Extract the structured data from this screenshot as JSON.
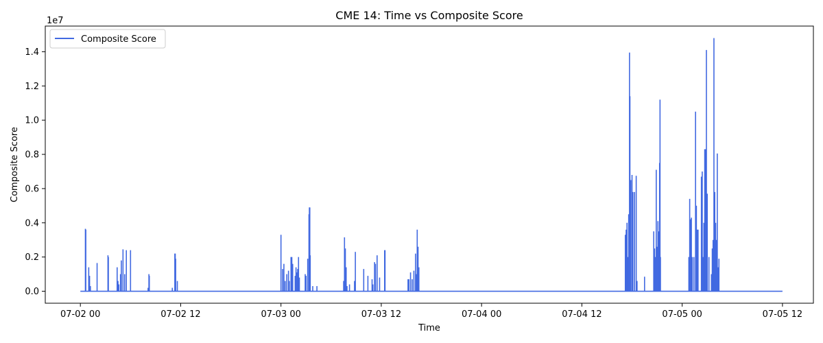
{
  "chart_data": {
    "type": "line",
    "title": "CME 14: Time vs Composite Score",
    "xlabel": "Time",
    "ylabel": "Composite Score",
    "y_offset_text": "1e7",
    "y_multiplier": 10000000,
    "grid": false,
    "legend_position": "top-left",
    "x_range_hours": [
      -4.2,
      87.7
    ],
    "ylim": [
      -0.07,
      1.55
    ],
    "x_ticks": [
      {
        "hours": 0,
        "label": "07-02 00"
      },
      {
        "hours": 12,
        "label": "07-02 12"
      },
      {
        "hours": 24,
        "label": "07-03 00"
      },
      {
        "hours": 36,
        "label": "07-03 12"
      },
      {
        "hours": 48,
        "label": "07-04 00"
      },
      {
        "hours": 60,
        "label": "07-04 12"
      },
      {
        "hours": 72,
        "label": "07-05 00"
      },
      {
        "hours": 84,
        "label": "07-05 12"
      }
    ],
    "y_ticks": [
      {
        "value": 0.0,
        "label": "0.0"
      },
      {
        "value": 0.2,
        "label": "0.2"
      },
      {
        "value": 0.4,
        "label": "0.4"
      },
      {
        "value": 0.6,
        "label": "0.6"
      },
      {
        "value": 0.8,
        "label": "0.8"
      },
      {
        "value": 1.0,
        "label": "1.0"
      },
      {
        "value": 1.2,
        "label": "1.2"
      },
      {
        "value": 1.4,
        "label": "1.4"
      }
    ],
    "series": [
      {
        "name": "Composite Score",
        "color": "#4169e1",
        "start_hours": 0,
        "end_hours": 84,
        "spikes": [
          [
            0.6,
            0.365
          ],
          [
            0.65,
            0.36
          ],
          [
            1.0,
            0.14
          ],
          [
            1.1,
            0.09
          ],
          [
            1.2,
            0.03
          ],
          [
            2.0,
            0.165
          ],
          [
            3.3,
            0.21
          ],
          [
            3.35,
            0.2
          ],
          [
            4.4,
            0.14
          ],
          [
            4.5,
            0.06
          ],
          [
            4.6,
            0.04
          ],
          [
            4.8,
            0.1
          ],
          [
            4.9,
            0.18
          ],
          [
            5.1,
            0.245
          ],
          [
            5.3,
            0.1
          ],
          [
            5.5,
            0.24
          ],
          [
            6.0,
            0.24
          ],
          [
            8.1,
            0.02
          ],
          [
            8.2,
            0.1
          ],
          [
            8.25,
            0.09
          ],
          [
            11.0,
            0.02
          ],
          [
            11.3,
            0.22
          ],
          [
            11.35,
            0.22
          ],
          [
            11.4,
            0.19
          ],
          [
            11.6,
            0.06
          ],
          [
            24.0,
            0.33
          ],
          [
            24.2,
            0.13
          ],
          [
            24.35,
            0.16
          ],
          [
            24.5,
            0.06
          ],
          [
            24.7,
            0.1
          ],
          [
            24.9,
            0.12
          ],
          [
            25.0,
            0.06
          ],
          [
            25.2,
            0.2
          ],
          [
            25.3,
            0.2
          ],
          [
            25.4,
            0.16
          ],
          [
            25.7,
            0.09
          ],
          [
            25.8,
            0.14
          ],
          [
            25.9,
            0.11
          ],
          [
            26.0,
            0.13
          ],
          [
            26.1,
            0.2
          ],
          [
            26.2,
            0.08
          ],
          [
            26.9,
            0.1
          ],
          [
            27.0,
            0.09
          ],
          [
            27.2,
            0.19
          ],
          [
            27.35,
            0.45
          ],
          [
            27.4,
            0.49
          ],
          [
            27.45,
            0.49
          ],
          [
            27.5,
            0.21
          ],
          [
            27.8,
            0.03
          ],
          [
            28.3,
            0.03
          ],
          [
            31.5,
            0.06
          ],
          [
            31.6,
            0.315
          ],
          [
            31.7,
            0.25
          ],
          [
            31.8,
            0.14
          ],
          [
            31.9,
            0.03
          ],
          [
            32.2,
            0.04
          ],
          [
            32.8,
            0.06
          ],
          [
            32.9,
            0.23
          ],
          [
            33.9,
            0.13
          ],
          [
            34.4,
            0.09
          ],
          [
            34.9,
            0.07
          ],
          [
            35.0,
            0.04
          ],
          [
            35.2,
            0.17
          ],
          [
            35.3,
            0.16
          ],
          [
            35.5,
            0.21
          ],
          [
            35.8,
            0.08
          ],
          [
            36.4,
            0.24
          ],
          [
            36.45,
            0.24
          ],
          [
            39.2,
            0.07
          ],
          [
            39.3,
            0.07
          ],
          [
            39.5,
            0.11
          ],
          [
            39.7,
            0.07
          ],
          [
            39.9,
            0.12
          ],
          [
            40.1,
            0.22
          ],
          [
            40.2,
            0.1
          ],
          [
            40.3,
            0.36
          ],
          [
            40.4,
            0.26
          ],
          [
            40.5,
            0.14
          ],
          [
            65.2,
            0.33
          ],
          [
            65.3,
            0.36
          ],
          [
            65.4,
            0.4
          ],
          [
            65.5,
            0.2
          ],
          [
            65.6,
            0.45
          ],
          [
            65.7,
            1.395
          ],
          [
            65.75,
            1.14
          ],
          [
            65.85,
            0.65
          ],
          [
            66.0,
            0.68
          ],
          [
            66.1,
            0.58
          ],
          [
            66.3,
            0.58
          ],
          [
            66.5,
            0.675
          ],
          [
            66.6,
            0.06
          ],
          [
            67.5,
            0.085
          ],
          [
            68.6,
            0.35
          ],
          [
            68.7,
            0.25
          ],
          [
            68.8,
            0.2
          ],
          [
            68.9,
            0.71
          ],
          [
            69.0,
            0.26
          ],
          [
            69.1,
            0.41
          ],
          [
            69.2,
            0.35
          ],
          [
            69.3,
            0.75
          ],
          [
            69.35,
            1.12
          ],
          [
            69.4,
            0.2
          ],
          [
            72.8,
            0.2
          ],
          [
            72.9,
            0.54
          ],
          [
            73.0,
            0.42
          ],
          [
            73.1,
            0.43
          ],
          [
            73.2,
            0.2
          ],
          [
            73.4,
            0.2
          ],
          [
            73.6,
            1.05
          ],
          [
            73.7,
            0.5
          ],
          [
            73.8,
            0.36
          ],
          [
            73.9,
            0.36
          ],
          [
            74.3,
            0.67
          ],
          [
            74.4,
            0.7
          ],
          [
            74.5,
            0.2
          ],
          [
            74.6,
            0.4
          ],
          [
            74.7,
            0.83
          ],
          [
            74.8,
            0.83
          ],
          [
            74.9,
            1.41
          ],
          [
            75.0,
            0.57
          ],
          [
            75.2,
            0.2
          ],
          [
            75.5,
            0.1
          ],
          [
            75.6,
            0.25
          ],
          [
            75.7,
            0.3
          ],
          [
            75.8,
            1.48
          ],
          [
            75.9,
            0.58
          ],
          [
            76.0,
            0.4
          ],
          [
            76.1,
            0.3
          ],
          [
            76.2,
            0.805
          ],
          [
            76.3,
            0.14
          ],
          [
            76.4,
            0.19
          ]
        ]
      }
    ]
  }
}
